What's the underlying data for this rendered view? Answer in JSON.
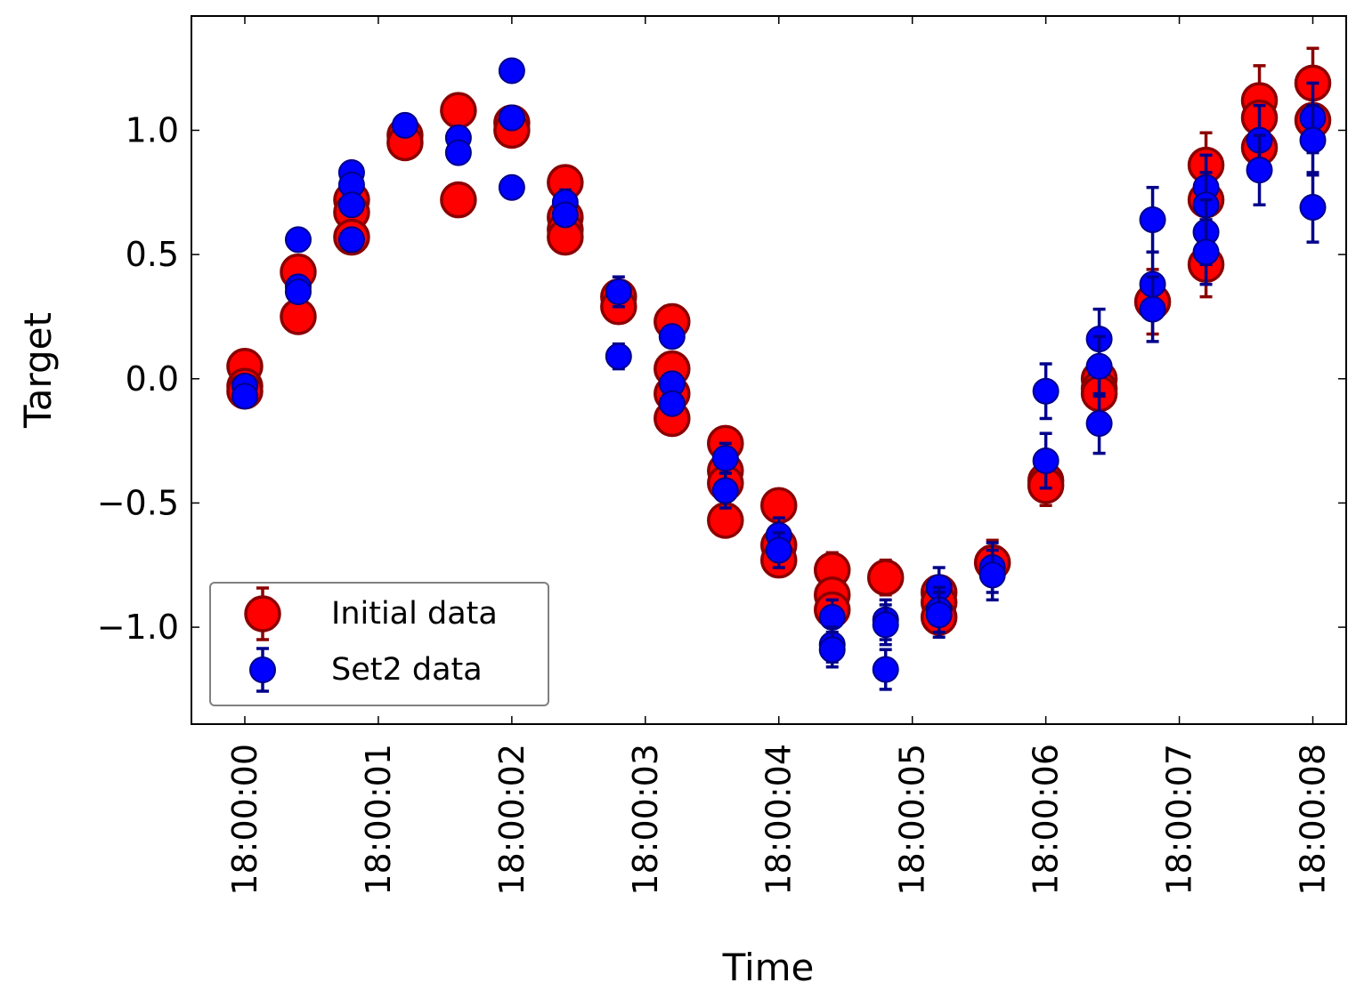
{
  "chart_data": {
    "type": "scatter",
    "title": "",
    "xlabel": "Time",
    "ylabel": "Target",
    "x_tick_labels": [
      "18:00:00",
      "18:00:01",
      "18:00:02",
      "18:00:03",
      "18:00:04",
      "18:00:05",
      "18:00:06",
      "18:00:07",
      "18:00:08"
    ],
    "y_tick_labels": [
      "1.0",
      "0.5",
      "0.0",
      "−0.5",
      "−1.0"
    ],
    "y_ticks": [
      1.0,
      0.5,
      0.0,
      -0.5,
      -1.0
    ],
    "xlim": [
      "17:59:59.6",
      "18:00:08.25"
    ],
    "ylim": [
      -1.39,
      1.46
    ],
    "grid": false,
    "legend_position": "lower-left",
    "series": [
      {
        "name": "Initial data",
        "color": "#ff0000",
        "edge_color": "#8b0000",
        "points": [
          {
            "x": "18:00:00.0",
            "y": 0.05,
            "err": 0.0
          },
          {
            "x": "18:00:00.0",
            "y": -0.03,
            "err": 0.0
          },
          {
            "x": "18:00:00.0",
            "y": -0.05,
            "err": 0.0
          },
          {
            "x": "18:00:00.4",
            "y": 0.43,
            "err": 0.0
          },
          {
            "x": "18:00:00.4",
            "y": 0.25,
            "err": 0.0
          },
          {
            "x": "18:00:00.8",
            "y": 0.72,
            "err": 0.0
          },
          {
            "x": "18:00:00.8",
            "y": 0.67,
            "err": 0.0
          },
          {
            "x": "18:00:00.8",
            "y": 0.57,
            "err": 0.0
          },
          {
            "x": "18:00:01.2",
            "y": 0.98,
            "err": 0.0
          },
          {
            "x": "18:00:01.2",
            "y": 0.95,
            "err": 0.0
          },
          {
            "x": "18:00:01.6",
            "y": 1.08,
            "err": 0.0
          },
          {
            "x": "18:00:01.6",
            "y": 0.72,
            "err": 0.0
          },
          {
            "x": "18:00:02.0",
            "y": 1.03,
            "err": 0.0
          },
          {
            "x": "18:00:02.0",
            "y": 1.0,
            "err": 0.0
          },
          {
            "x": "18:00:02.4",
            "y": 0.79,
            "err": 0.0
          },
          {
            "x": "18:00:02.4",
            "y": 0.65,
            "err": 0.0
          },
          {
            "x": "18:00:02.4",
            "y": 0.6,
            "err": 0.0
          },
          {
            "x": "18:00:02.4",
            "y": 0.57,
            "err": 0.0
          },
          {
            "x": "18:00:02.8",
            "y": 0.33,
            "err": 0.0
          },
          {
            "x": "18:00:02.8",
            "y": 0.29,
            "err": 0.0
          },
          {
            "x": "18:00:03.2",
            "y": 0.23,
            "err": 0.0
          },
          {
            "x": "18:00:03.2",
            "y": 0.04,
            "err": 0.0
          },
          {
            "x": "18:00:03.2",
            "y": -0.06,
            "err": 0.0
          },
          {
            "x": "18:00:03.2",
            "y": -0.16,
            "err": 0.0
          },
          {
            "x": "18:00:03.6",
            "y": -0.26,
            "err": 0.0
          },
          {
            "x": "18:00:03.6",
            "y": -0.37,
            "err": 0.0
          },
          {
            "x": "18:00:03.6",
            "y": -0.42,
            "err": 0.0
          },
          {
            "x": "18:00:03.6",
            "y": -0.57,
            "err": 0.0
          },
          {
            "x": "18:00:04.0",
            "y": -0.51,
            "err": 0.05
          },
          {
            "x": "18:00:04.0",
            "y": -0.67,
            "err": 0.0
          },
          {
            "x": "18:00:04.0",
            "y": -0.73,
            "err": 0.0
          },
          {
            "x": "18:00:04.4",
            "y": -0.77,
            "err": 0.07
          },
          {
            "x": "18:00:04.4",
            "y": -0.87,
            "err": 0.0
          },
          {
            "x": "18:00:04.4",
            "y": -0.93,
            "err": 0.0
          },
          {
            "x": "18:00:04.8",
            "y": -0.8,
            "err": 0.07
          },
          {
            "x": "18:00:05.2",
            "y": -0.86,
            "err": 0.0
          },
          {
            "x": "18:00:05.2",
            "y": -0.9,
            "err": 0.0
          },
          {
            "x": "18:00:05.2",
            "y": -0.96,
            "err": 0.0
          },
          {
            "x": "18:00:05.6",
            "y": -0.74,
            "err": 0.09
          },
          {
            "x": "18:00:06.0",
            "y": -0.41,
            "err": 0.1
          },
          {
            "x": "18:00:06.0",
            "y": -0.43,
            "err": 0.0
          },
          {
            "x": "18:00:06.4",
            "y": 0.0,
            "err": 0.0
          },
          {
            "x": "18:00:06.4",
            "y": -0.04,
            "err": 0.0
          },
          {
            "x": "18:00:06.4",
            "y": -0.06,
            "err": 0.0
          },
          {
            "x": "18:00:06.8",
            "y": 0.31,
            "err": 0.13
          },
          {
            "x": "18:00:07.2",
            "y": 0.86,
            "err": 0.13
          },
          {
            "x": "18:00:07.2",
            "y": 0.72,
            "err": 0.0
          },
          {
            "x": "18:00:07.2",
            "y": 0.46,
            "err": 0.13
          },
          {
            "x": "18:00:07.6",
            "y": 1.12,
            "err": 0.14
          },
          {
            "x": "18:00:07.6",
            "y": 1.05,
            "err": 0.0
          },
          {
            "x": "18:00:07.6",
            "y": 0.93,
            "err": 0.0
          },
          {
            "x": "18:00:08.0",
            "y": 1.19,
            "err": 0.14
          },
          {
            "x": "18:00:08.0",
            "y": 1.04,
            "err": 0.0
          }
        ]
      },
      {
        "name": "Set2 data",
        "color": "#0000ff",
        "edge_color": "#00008b",
        "points": [
          {
            "x": "18:00:00.0",
            "y": -0.03,
            "err": 0.0
          },
          {
            "x": "18:00:00.0",
            "y": -0.07,
            "err": 0.0
          },
          {
            "x": "18:00:00.4",
            "y": 0.56,
            "err": 0.0
          },
          {
            "x": "18:00:00.4",
            "y": 0.37,
            "err": 0.0
          },
          {
            "x": "18:00:00.4",
            "y": 0.35,
            "err": 0.0
          },
          {
            "x": "18:00:00.8",
            "y": 0.83,
            "err": 0.0
          },
          {
            "x": "18:00:00.8",
            "y": 0.78,
            "err": 0.0
          },
          {
            "x": "18:00:00.8",
            "y": 0.7,
            "err": 0.0
          },
          {
            "x": "18:00:00.8",
            "y": 0.56,
            "err": 0.0
          },
          {
            "x": "18:00:01.2",
            "y": 1.02,
            "err": 0.0
          },
          {
            "x": "18:00:01.6",
            "y": 0.97,
            "err": 0.0
          },
          {
            "x": "18:00:01.6",
            "y": 0.91,
            "err": 0.0
          },
          {
            "x": "18:00:02.0",
            "y": 1.24,
            "err": 0.0
          },
          {
            "x": "18:00:02.0",
            "y": 1.05,
            "err": 0.0
          },
          {
            "x": "18:00:02.0",
            "y": 0.77,
            "err": 0.0
          },
          {
            "x": "18:00:02.4",
            "y": 0.71,
            "err": 0.05
          },
          {
            "x": "18:00:02.4",
            "y": 0.66,
            "err": 0.0
          },
          {
            "x": "18:00:02.8",
            "y": 0.35,
            "err": 0.06
          },
          {
            "x": "18:00:02.8",
            "y": 0.09,
            "err": 0.05
          },
          {
            "x": "18:00:03.2",
            "y": 0.17,
            "err": 0.0
          },
          {
            "x": "18:00:03.2",
            "y": -0.02,
            "err": 0.0
          },
          {
            "x": "18:00:03.2",
            "y": -0.1,
            "err": 0.0
          },
          {
            "x": "18:00:03.6",
            "y": -0.32,
            "err": 0.06
          },
          {
            "x": "18:00:03.6",
            "y": -0.45,
            "err": 0.07
          },
          {
            "x": "18:00:04.0",
            "y": -0.63,
            "err": 0.07
          },
          {
            "x": "18:00:04.0",
            "y": -0.69,
            "err": 0.07
          },
          {
            "x": "18:00:04.4",
            "y": -0.96,
            "err": 0.07
          },
          {
            "x": "18:00:04.4",
            "y": -1.07,
            "err": 0.07
          },
          {
            "x": "18:00:04.4",
            "y": -1.09,
            "err": 0.07
          },
          {
            "x": "18:00:04.8",
            "y": -0.97,
            "err": 0.08
          },
          {
            "x": "18:00:04.8",
            "y": -0.99,
            "err": 0.08
          },
          {
            "x": "18:00:04.8",
            "y": -1.17,
            "err": 0.08
          },
          {
            "x": "18:00:05.2",
            "y": -0.84,
            "err": 0.08
          },
          {
            "x": "18:00:05.2",
            "y": -0.93,
            "err": 0.09
          },
          {
            "x": "18:00:05.2",
            "y": -0.95,
            "err": 0.09
          },
          {
            "x": "18:00:05.6",
            "y": -0.76,
            "err": 0.1
          },
          {
            "x": "18:00:05.6",
            "y": -0.79,
            "err": 0.1
          },
          {
            "x": "18:00:06.0",
            "y": -0.05,
            "err": 0.11
          },
          {
            "x": "18:00:06.0",
            "y": -0.33,
            "err": 0.11
          },
          {
            "x": "18:00:06.4",
            "y": 0.16,
            "err": 0.12
          },
          {
            "x": "18:00:06.4",
            "y": 0.05,
            "err": 0.12
          },
          {
            "x": "18:00:06.4",
            "y": -0.18,
            "err": 0.12
          },
          {
            "x": "18:00:06.8",
            "y": 0.64,
            "err": 0.13
          },
          {
            "x": "18:00:06.8",
            "y": 0.38,
            "err": 0.13
          },
          {
            "x": "18:00:06.8",
            "y": 0.28,
            "err": 0.13
          },
          {
            "x": "18:00:07.2",
            "y": 0.77,
            "err": 0.13
          },
          {
            "x": "18:00:07.2",
            "y": 0.7,
            "err": 0.13
          },
          {
            "x": "18:00:07.2",
            "y": 0.59,
            "err": 0.13
          },
          {
            "x": "18:00:07.2",
            "y": 0.51,
            "err": 0.13
          },
          {
            "x": "18:00:07.6",
            "y": 0.96,
            "err": 0.14
          },
          {
            "x": "18:00:07.6",
            "y": 0.84,
            "err": 0.14
          },
          {
            "x": "18:00:08.0",
            "y": 1.05,
            "err": 0.14
          },
          {
            "x": "18:00:08.0",
            "y": 0.96,
            "err": 0.14
          },
          {
            "x": "18:00:08.0",
            "y": 0.69,
            "err": 0.14
          }
        ]
      }
    ]
  }
}
